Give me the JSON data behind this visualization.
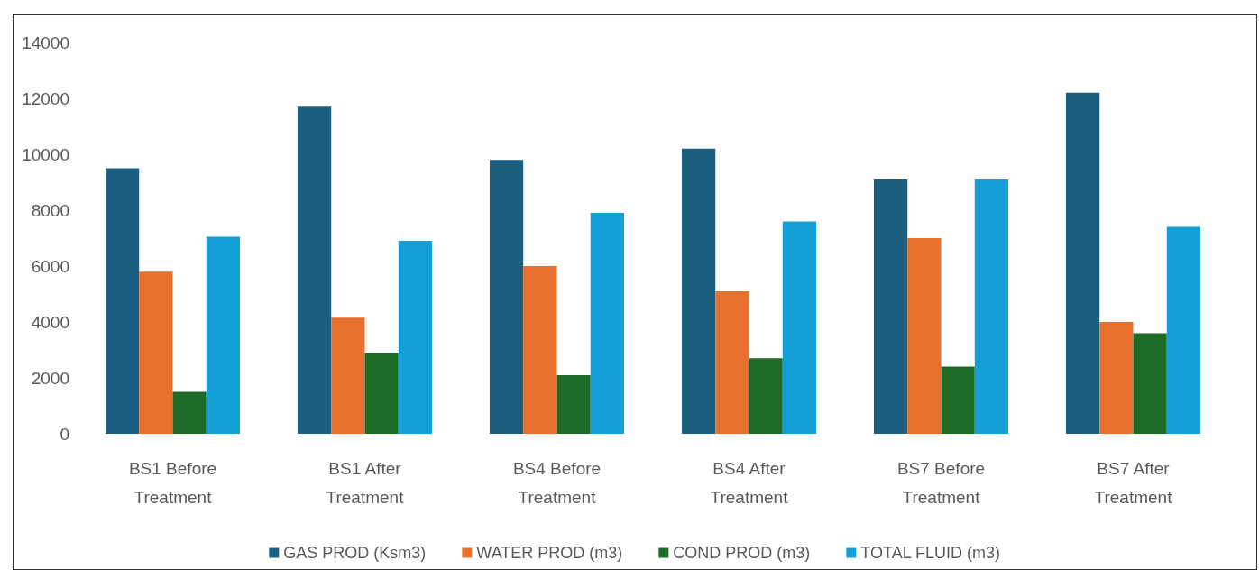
{
  "chart_data": {
    "type": "bar",
    "categories": [
      "BS1 Before Treatment",
      "BS1 After Treatment",
      "BS4 Before Treatment",
      "BS4 After Treatment",
      "BS7 Before Treatment",
      "BS7 After Treatment"
    ],
    "series": [
      {
        "name": "GAS PROD (Ksm3)",
        "color": "#1a5e80",
        "values": [
          9500,
          11700,
          9800,
          10200,
          9100,
          12200
        ]
      },
      {
        "name": "WATER PROD (m3)",
        "color": "#e8702f",
        "values": [
          5800,
          4150,
          6000,
          5100,
          7000,
          4000
        ]
      },
      {
        "name": "COND PROD (m3)",
        "color": "#1d6b27",
        "values": [
          1500,
          2900,
          2100,
          2700,
          2400,
          3600
        ]
      },
      {
        "name": "TOTAL FLUID (m3)",
        "color": "#149fd7",
        "values": [
          7050,
          6900,
          7900,
          7600,
          9100,
          7400
        ]
      }
    ],
    "ylim": [
      0,
      14000
    ],
    "yticks": [
      0,
      2000,
      4000,
      6000,
      8000,
      10000,
      12000,
      14000
    ],
    "grid": false,
    "legend": "bottom"
  }
}
